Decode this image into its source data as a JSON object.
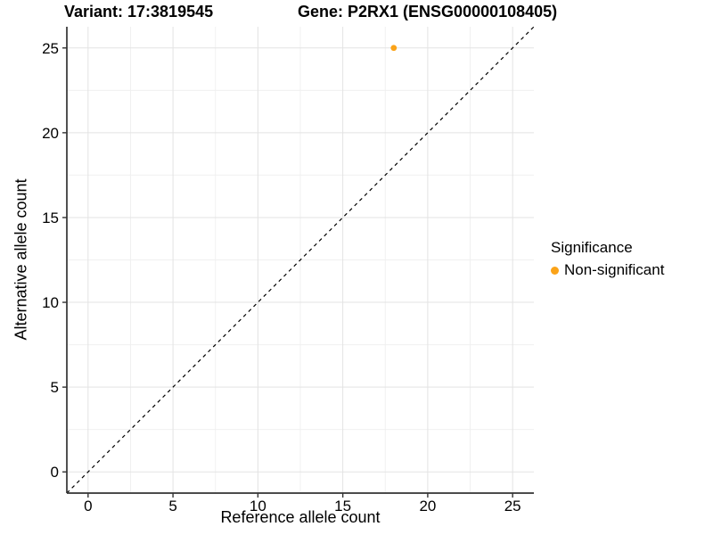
{
  "header": {
    "variant_title": "Variant: 17:3819545",
    "gene_title": "Gene: P2RX1 (ENSG00000108405)"
  },
  "chart_data": {
    "type": "scatter",
    "xlabel": "Reference allele count",
    "ylabel": "Alternative allele count",
    "xlim": [
      -1.25,
      26.25
    ],
    "ylim": [
      -1.25,
      26.25
    ],
    "xticks": [
      0,
      5,
      10,
      15,
      20,
      25
    ],
    "yticks": [
      0,
      5,
      10,
      15,
      20,
      25
    ],
    "minor_ticks": [
      2.5,
      7.5,
      12.5,
      17.5,
      22.5
    ],
    "grid": "on",
    "reference_line": {
      "type": "identity",
      "slope": 1,
      "intercept": 0,
      "style": "dashed",
      "color": "#000000"
    },
    "series": [
      {
        "name": "Non-significant",
        "color": "#FBA318",
        "points": [
          {
            "x": 18,
            "y": 25
          }
        ]
      }
    ],
    "legend": {
      "title": "Significance",
      "position": "right",
      "items": [
        {
          "label": "Non-significant",
          "color": "#FBA318"
        }
      ]
    },
    "style": {
      "major_grid_color": "#E3E3E3",
      "minor_grid_color": "#F0F0F0",
      "axis_line_color": "#333333",
      "text_color": "#000000"
    }
  }
}
